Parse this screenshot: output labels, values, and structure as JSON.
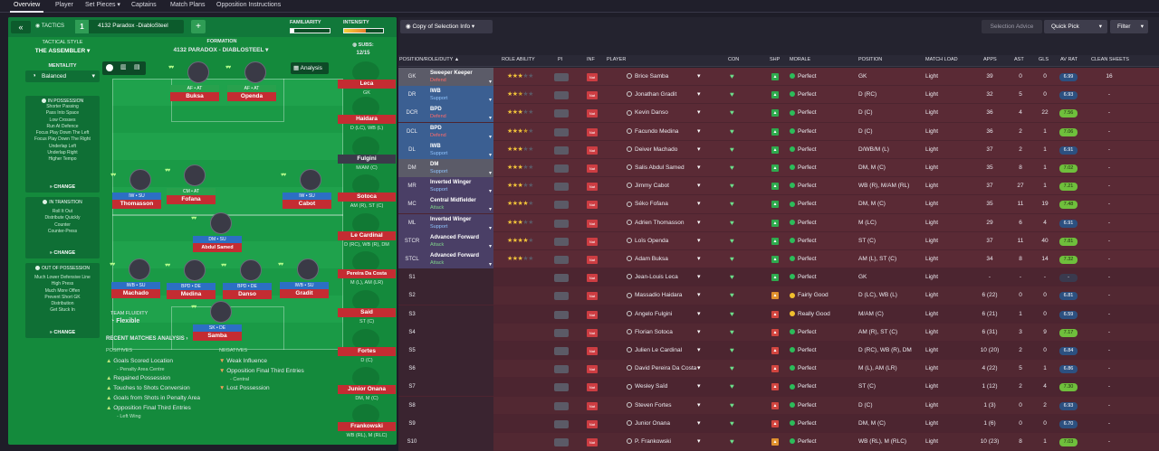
{
  "nav": {
    "tabs": [
      "Overview",
      "Player",
      "Set Pieces",
      "Captains",
      "Match Plans",
      "Opposition Instructions"
    ]
  },
  "tactics": {
    "back": "«",
    "title": "TACTICS",
    "slot": "1",
    "name": "4132 Paradox -DiabloSteel",
    "add": "+",
    "familiarity": "FAMILIARITY",
    "intensity": "INTENSITY"
  },
  "sidebar": {
    "style_label": "TACTICAL STYLE",
    "style_value": "THE ASSEMBLER",
    "mentality_label": "MENTALITY",
    "mentality_value": "Balanced",
    "possession_title": "IN POSSESSION",
    "possession": [
      "Shorter Passing",
      "Pass Into Space",
      "Low Crosses",
      "Run At Defence",
      "Focus Play Down The Left",
      "Focus Play Down The Right",
      "Underlap Left",
      "Underlap Right",
      "Higher Tempo"
    ],
    "transition_title": "IN TRANSITION",
    "transition": [
      "Roll It Out",
      "Distribute Quickly",
      "Counter",
      "Counter-Press"
    ],
    "oop_title": "OUT OF POSSESSION",
    "oop": [
      "Much Lower Defensive Line",
      "High Press",
      "Much More Offen",
      "Prevent Short GK",
      "Distribution",
      "Get Stuck In"
    ],
    "change": "CHANGE"
  },
  "pitch": {
    "formation_label": "FORMATION",
    "formation_value": "4132 PARADOX - DIABLOSTEEL",
    "subs_label": "SUBS:",
    "subs_value": "12/15",
    "analysis": "Analysis",
    "fluidity_label": "TEAM FLUIDITY",
    "fluidity_value": "Flexible"
  },
  "players": [
    {
      "role": "AF • AT",
      "name": "Buksa"
    },
    {
      "role": "AF • AT",
      "name": "Openda"
    },
    {
      "role": "IW • SU",
      "name": "Thomasson"
    },
    {
      "role": "CM • AT",
      "name": "Fofana"
    },
    {
      "role": "IW • SU",
      "name": "Cabot"
    },
    {
      "role": "DM • SU",
      "name": "Abdul Samed"
    },
    {
      "role": "IWB • SU",
      "name": "Machado"
    },
    {
      "role": "BPD • DE",
      "name": "Medina"
    },
    {
      "role": "BPD • DE",
      "name": "Danso"
    },
    {
      "role": "IWB • SU",
      "name": "Gradit"
    },
    {
      "role": "SK • DE",
      "name": "Samba"
    }
  ],
  "subs": [
    {
      "name": "Leca",
      "pos": "GK"
    },
    {
      "name": "Haidara",
      "pos": "D (LC), WB (L)"
    },
    {
      "name": "Fulgini",
      "pos": "M/AM (C)"
    },
    {
      "name": "Sotoca",
      "pos": "AM (R), ST (C)"
    },
    {
      "name": "Le Cardinal",
      "pos": "D (RC), WB (R), DM"
    },
    {
      "name": "Pereira Da Costa",
      "pos": "M (L), AM (LR)"
    },
    {
      "name": "Said",
      "pos": "ST (C)"
    },
    {
      "name": "Fortes",
      "pos": "D (C)"
    },
    {
      "name": "Junior Onana",
      "pos": "DM, M (C)"
    },
    {
      "name": "Frankowski",
      "pos": "WB (RL), M (RLC)"
    }
  ],
  "analysis": {
    "title": "RECENT MATCHES ANALYSIS ›",
    "pos_label": "POSITIVES",
    "neg_label": "NEGATIVES",
    "positives": [
      "Goals Scored Location",
      "- Penalty Area Centre",
      "Regained Possession",
      "Touches to Shots Conversion",
      "Goals from Shots in Penalty Area",
      "Opposition Final Third Entries",
      "- Left Wing"
    ],
    "negatives": [
      "Weak Influence",
      "Opposition Final Third Entries",
      "- Central",
      "Lost Possession"
    ]
  },
  "right": {
    "copy_btn": "Copy of Selection Info",
    "selection_advice": "Selection Advice",
    "quick_pick": "Quick Pick",
    "filter": "Filter",
    "cols": [
      "POSITION/ROLE/DUTY",
      "ROLE ABILITY",
      "PI",
      "INF",
      "PLAYER",
      "CON",
      "SHP",
      "MORALE",
      "POSITION",
      "MATCH LOAD",
      "APPS",
      "AST",
      "GLS",
      "AV RAT",
      "CLEAN SHEETS"
    ]
  },
  "rows": [
    {
      "pos": "GK",
      "r1": "Sweeper Keeper",
      "r2": "Defend",
      "stars": 3,
      "player": "Brice Samba",
      "morale": "Perfect",
      "position": "GK",
      "load": "Light",
      "apps": "39",
      "ast": "0",
      "gls": "0",
      "rat": "6.99",
      "cs": "16"
    },
    {
      "pos": "DR",
      "r1": "IWB",
      "r2": "Support",
      "stars": 2.5,
      "player": "Jonathan Gradit",
      "morale": "Perfect",
      "position": "D (RC)",
      "load": "Light",
      "apps": "32",
      "ast": "5",
      "gls": "0",
      "rat": "6.93",
      "cs": "-"
    },
    {
      "pos": "DCR",
      "r1": "BPD",
      "r2": "Defend",
      "stars": 3,
      "player": "Kevin Danso",
      "morale": "Perfect",
      "position": "D (C)",
      "load": "Light",
      "apps": "36",
      "ast": "4",
      "gls": "22",
      "rat": "7.56",
      "cs": "-"
    },
    {
      "pos": "DCL",
      "r1": "BPD",
      "r2": "Defend",
      "stars": 3.5,
      "player": "Facundo Medina",
      "morale": "Perfect",
      "position": "D (C)",
      "load": "Light",
      "apps": "36",
      "ast": "2",
      "gls": "1",
      "rat": "7.06",
      "cs": "-"
    },
    {
      "pos": "DL",
      "r1": "IWB",
      "r2": "Support",
      "stars": 3,
      "player": "Deiver Machado",
      "morale": "Perfect",
      "position": "D/WB/M (L)",
      "load": "Light",
      "apps": "37",
      "ast": "2",
      "gls": "1",
      "rat": "6.91",
      "cs": "-"
    },
    {
      "pos": "DM",
      "r1": "DM",
      "r2": "Support",
      "stars": 3,
      "player": "Salis Abdul Samed",
      "morale": "Perfect",
      "position": "DM, M (C)",
      "load": "Light",
      "apps": "35",
      "ast": "8",
      "gls": "1",
      "rat": "7.02",
      "cs": "-"
    },
    {
      "pos": "MR",
      "r1": "Inverted Winger",
      "r2": "Support",
      "stars": 3,
      "player": "Jimmy Cabot",
      "morale": "Perfect",
      "position": "WB (R), M/AM (RL)",
      "load": "Light",
      "apps": "37",
      "ast": "27",
      "gls": "1",
      "rat": "7.21",
      "cs": "-"
    },
    {
      "pos": "MC",
      "r1": "Central Midfielder",
      "r2": "Attack",
      "stars": 4,
      "player": "Séko Fofana",
      "morale": "Perfect",
      "position": "DM, M (C)",
      "load": "Light",
      "apps": "35",
      "ast": "11",
      "gls": "19",
      "rat": "7.48",
      "cs": "-"
    },
    {
      "pos": "ML",
      "r1": "Inverted Winger",
      "r2": "Support",
      "stars": 3,
      "player": "Adrien Thomasson",
      "morale": "Perfect",
      "position": "M (LC)",
      "load": "Light",
      "apps": "29",
      "ast": "6",
      "gls": "4",
      "rat": "6.91",
      "cs": "-"
    },
    {
      "pos": "STCR",
      "r1": "Advanced Forward",
      "r2": "Attack",
      "stars": 4,
      "player": "Loïs Openda",
      "morale": "Perfect",
      "position": "ST (C)",
      "load": "Light",
      "apps": "37",
      "ast": "11",
      "gls": "40",
      "rat": "7.81",
      "cs": "-"
    },
    {
      "pos": "STCL",
      "r1": "Advanced Forward",
      "r2": "Attack",
      "stars": 3,
      "player": "Adam Buksa",
      "morale": "Perfect",
      "position": "AM (L), ST (C)",
      "load": "Light",
      "apps": "34",
      "ast": "8",
      "gls": "14",
      "rat": "7.32",
      "cs": "-"
    },
    {
      "pos": "S1",
      "player": "Jean-Louis Leca",
      "morale": "Perfect",
      "position": "GK",
      "load": "Light",
      "apps": "-",
      "ast": "-",
      "gls": "-",
      "rat": "-",
      "cs": "-"
    },
    {
      "pos": "S2",
      "player": "Massadio Haidara",
      "morale": "Fairly Good",
      "position": "D (LC), WB (L)",
      "load": "Light",
      "apps": "6 (22)",
      "ast": "0",
      "gls": "0",
      "rat": "6.81",
      "cs": "-"
    },
    {
      "pos": "S3",
      "player": "Angelo Fulgini",
      "morale": "Really Good",
      "position": "M/AM (C)",
      "load": "Light",
      "apps": "6 (21)",
      "ast": "1",
      "gls": "0",
      "rat": "6.59",
      "cs": "-"
    },
    {
      "pos": "S4",
      "player": "Florian Sotoca",
      "morale": "Perfect",
      "position": "AM (R), ST (C)",
      "load": "Light",
      "apps": "6 (31)",
      "ast": "3",
      "gls": "9",
      "rat": "7.17",
      "cs": "-"
    },
    {
      "pos": "S5",
      "player": "Julien Le Cardinal",
      "morale": "Perfect",
      "position": "D (RC), WB (R), DM",
      "load": "Light",
      "apps": "10 (20)",
      "ast": "2",
      "gls": "0",
      "rat": "6.84",
      "cs": "-"
    },
    {
      "pos": "S6",
      "player": "David Pereira Da Costa",
      "morale": "Perfect",
      "position": "M (L), AM (LR)",
      "load": "Light",
      "apps": "4 (22)",
      "ast": "5",
      "gls": "1",
      "rat": "6.86",
      "cs": "-"
    },
    {
      "pos": "S7",
      "player": "Wesley Saïd",
      "morale": "Perfect",
      "position": "ST (C)",
      "load": "Light",
      "apps": "1 (12)",
      "ast": "2",
      "gls": "4",
      "rat": "7.30",
      "cs": "-"
    },
    {
      "pos": "S8",
      "player": "Steven Fortes",
      "morale": "Perfect",
      "position": "D (C)",
      "load": "Light",
      "apps": "1 (3)",
      "ast": "0",
      "gls": "2",
      "rat": "6.93",
      "cs": "-"
    },
    {
      "pos": "S9",
      "player": "Junior Onana",
      "morale": "Perfect",
      "position": "DM, M (C)",
      "load": "Light",
      "apps": "1 (6)",
      "ast": "0",
      "gls": "0",
      "rat": "6.70",
      "cs": "-"
    },
    {
      "pos": "S10",
      "player": "P. Frankowski",
      "morale": "Perfect",
      "position": "WB (RL), M (RLC)",
      "load": "Light",
      "apps": "10 (23)",
      "ast": "8",
      "gls": "1",
      "rat": "7.03",
      "cs": "-"
    }
  ],
  "colors": {
    "pitch": "#148a3c",
    "field": "#1a9a46",
    "panel": "#24232f",
    "name_bar": "#c42c32",
    "support": "#2c6fc4",
    "rating_high": "#6fbf3c"
  }
}
